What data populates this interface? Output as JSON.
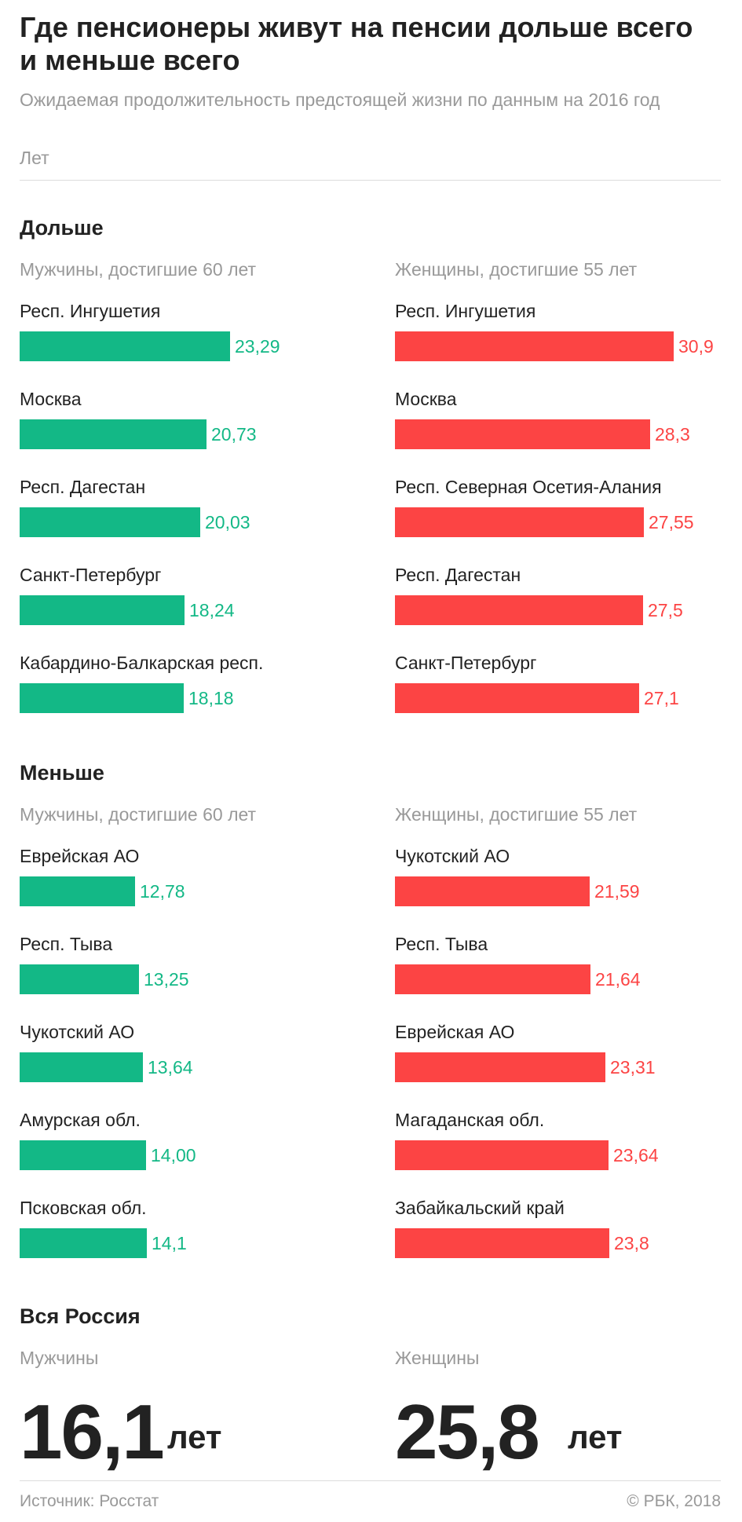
{
  "title": "Где пенсионеры живут на пенсии дольше всего и меньше всего",
  "subtitle": "Ожидаемая продолжительность предстоящей жизни по данным на 2016 год",
  "unit_label": "Лет",
  "colors": {
    "men": "#13b886",
    "women": "#fc4444"
  },
  "sections": {
    "longer": {
      "title": "Дольше"
    },
    "shorter": {
      "title": "Меньше"
    },
    "russia": {
      "title": "Вся Россия",
      "men_label": "Мужчины",
      "women_label": "Женщины",
      "men_value": "16,1",
      "women_value": "25,8",
      "unit": "лет"
    }
  },
  "groups": {
    "men": "Мужчины, достигшие 60 лет",
    "women": "Женщины, достигшие 55 лет"
  },
  "chart_data": [
    {
      "type": "bar",
      "orientation": "horizontal",
      "section": "Дольше",
      "group": "Мужчины, достигшие 60 лет",
      "categories": [
        "Респ. Ингушетия",
        "Москва",
        "Респ. Дагестан",
        "Санкт-Петербург",
        "Кабардино-Балкарская респ."
      ],
      "values": [
        23.29,
        20.73,
        20.03,
        18.24,
        18.18
      ],
      "value_labels": [
        "23,29",
        "20,73",
        "20,03",
        "18,24",
        "18,18"
      ],
      "color": "#13b886",
      "xlim": [
        0,
        30.9
      ]
    },
    {
      "type": "bar",
      "orientation": "horizontal",
      "section": "Дольше",
      "group": "Женщины, достигшие 55 лет",
      "categories": [
        "Респ. Ингушетия",
        "Москва",
        "Респ. Северная Осетия-Алания",
        "Респ. Дагестан",
        "Санкт-Петербург"
      ],
      "values": [
        30.9,
        28.3,
        27.55,
        27.5,
        27.1
      ],
      "value_labels": [
        "30,9",
        "28,3",
        "27,55",
        "27,5",
        "27,1"
      ],
      "color": "#fc4444",
      "xlim": [
        0,
        30.9
      ]
    },
    {
      "type": "bar",
      "orientation": "horizontal",
      "section": "Меньше",
      "group": "Мужчины, достигшие 60 лет",
      "categories": [
        "Еврейская АО",
        "Респ. Тыва",
        "Чукотский АО",
        "Амурская обл.",
        "Псковская обл."
      ],
      "values": [
        12.78,
        13.25,
        13.64,
        14.0,
        14.1
      ],
      "value_labels": [
        "12,78",
        "13,25",
        "13,64",
        "14,00",
        "14,1"
      ],
      "color": "#13b886",
      "xlim": [
        0,
        30.9
      ]
    },
    {
      "type": "bar",
      "orientation": "horizontal",
      "section": "Меньше",
      "group": "Женщины, достигшие 55 лет",
      "categories": [
        "Чукотский АО",
        "Респ. Тыва",
        "Еврейская АО",
        "Магаданская обл.",
        "Забайкальский край"
      ],
      "values": [
        21.59,
        21.64,
        23.31,
        23.64,
        23.8
      ],
      "value_labels": [
        "21,59",
        "21,64",
        "23,31",
        "23,64",
        "23,8"
      ],
      "color": "#fc4444",
      "xlim": [
        0,
        30.9
      ]
    }
  ],
  "footer": {
    "source": "Источник: Росстат",
    "copyright": "© РБК, 2018"
  }
}
